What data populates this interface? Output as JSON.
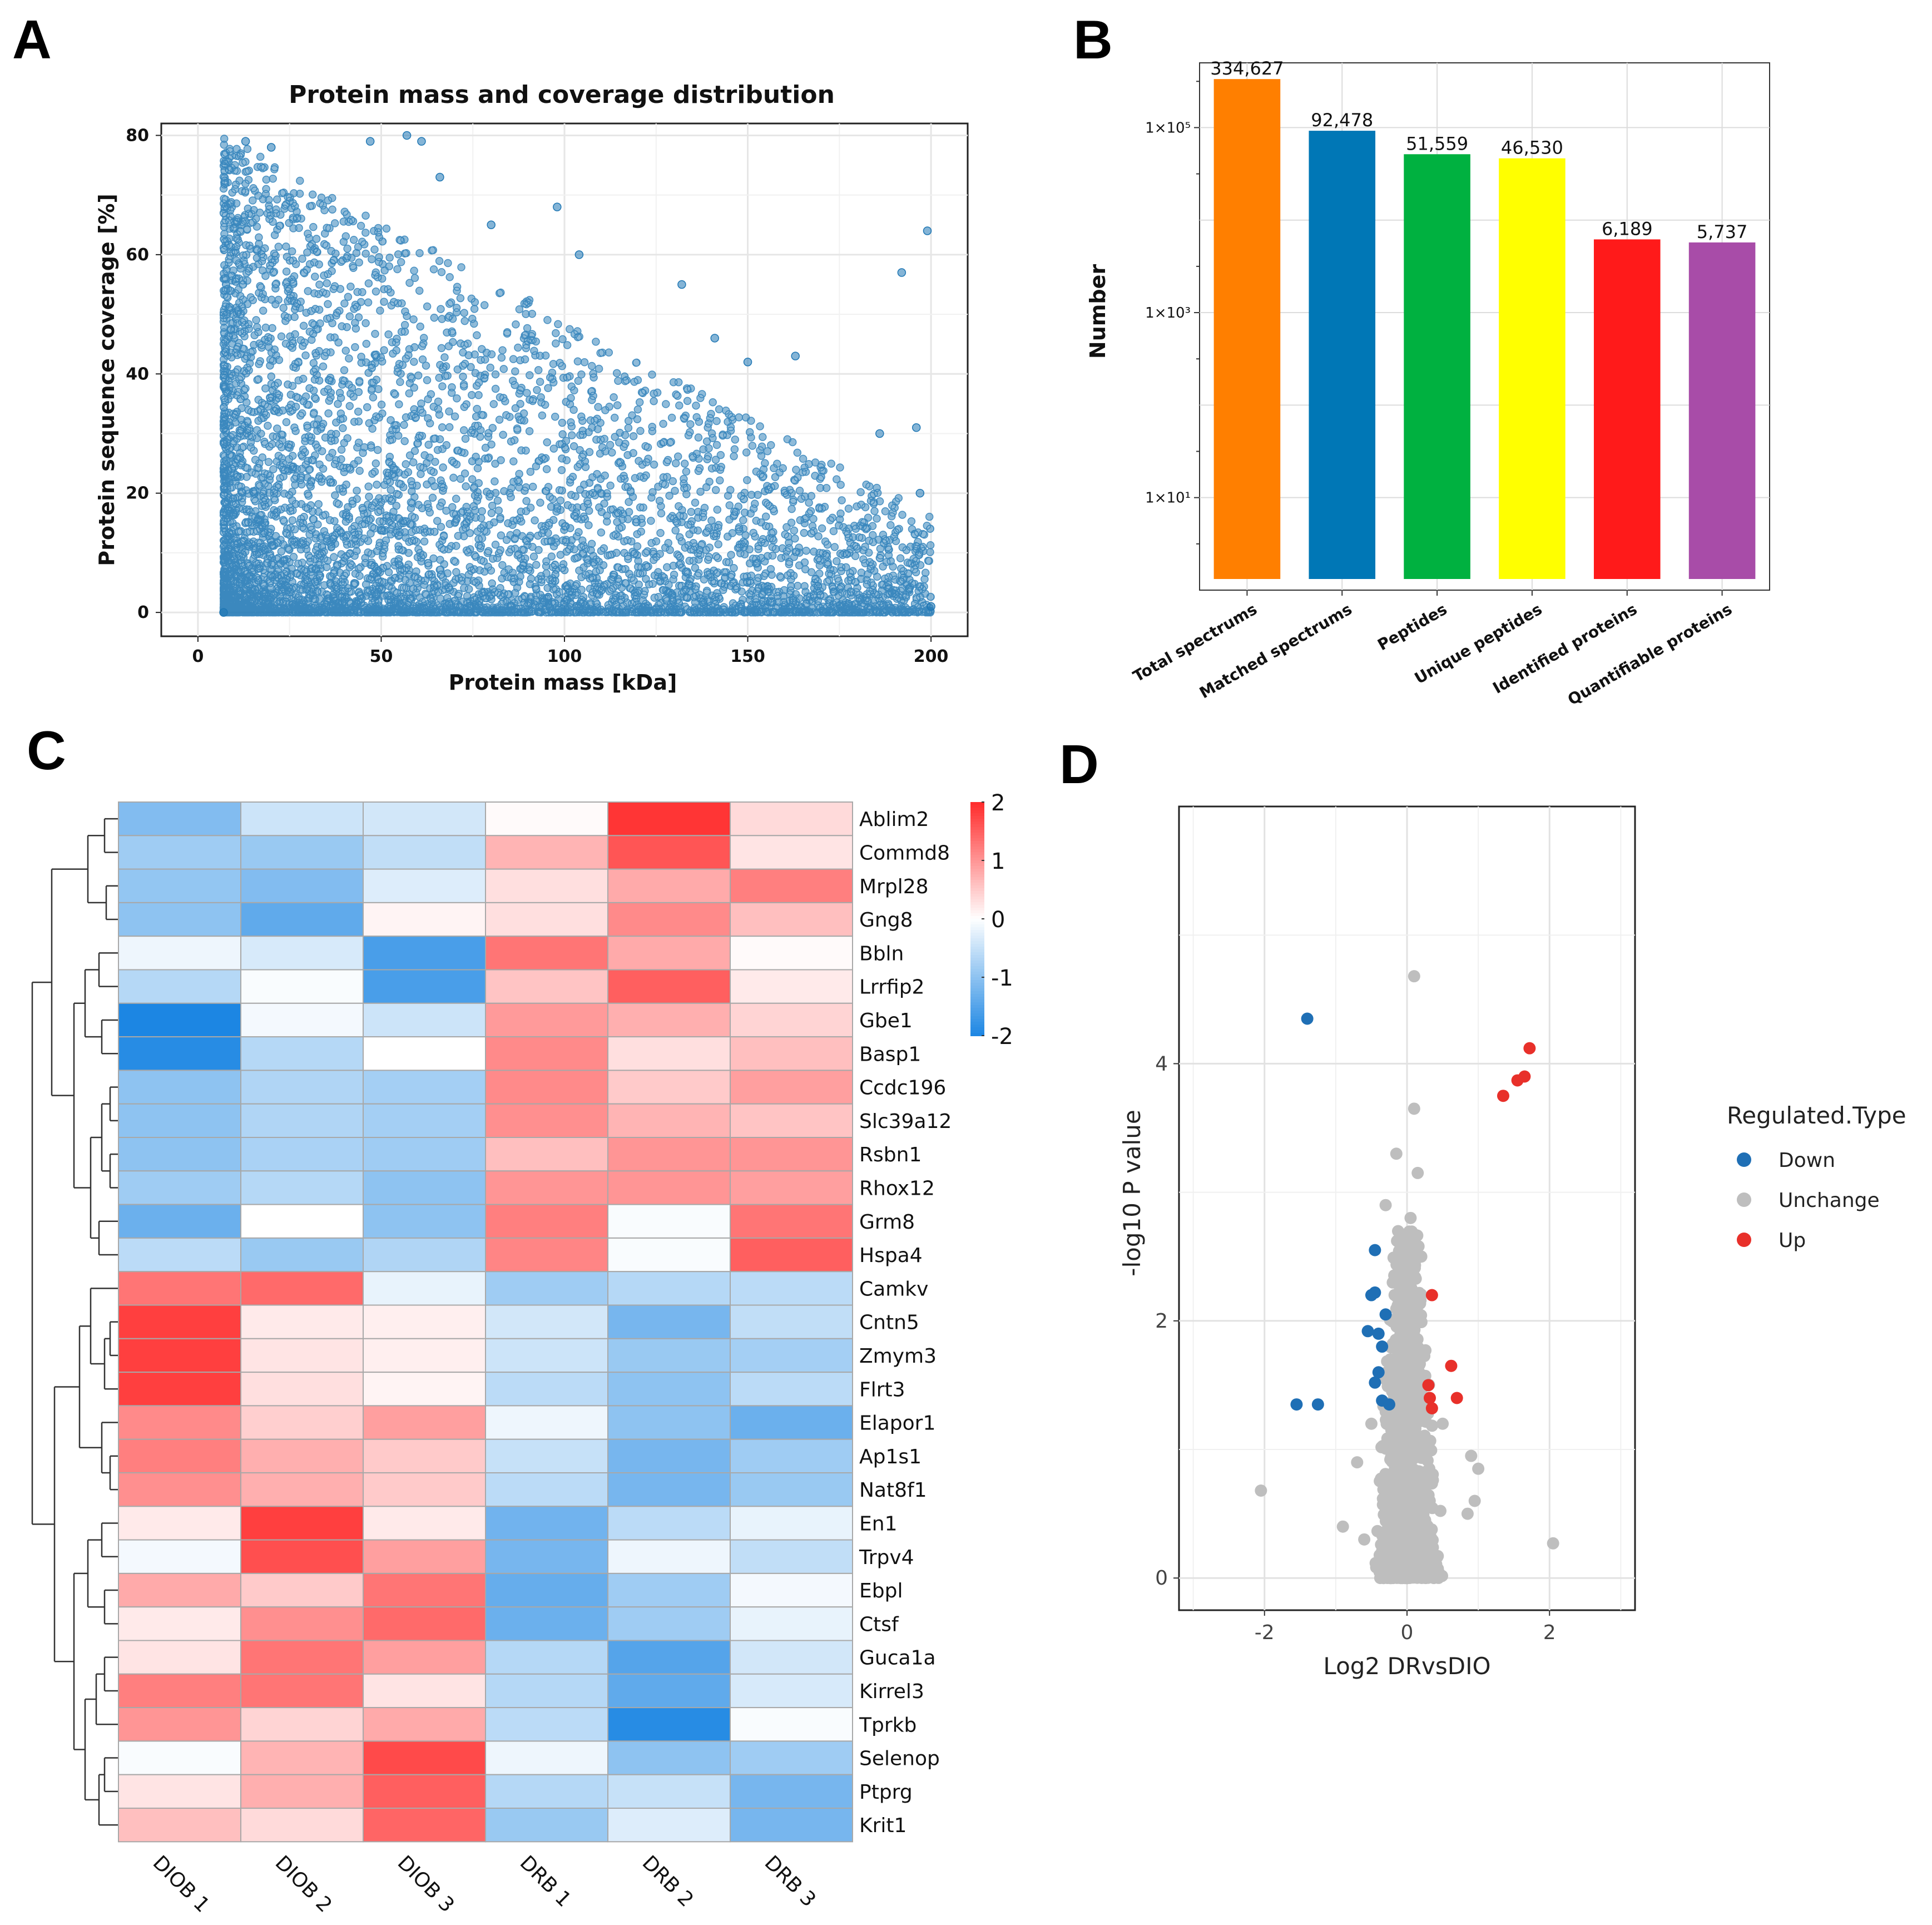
{
  "panels": {
    "a": "A",
    "b": "B",
    "c": "C",
    "d": "D"
  },
  "colors": {
    "scatter_point": "#1f77b4",
    "down": "#1f6fb5",
    "unchange": "#bebebe",
    "up": "#e8302a"
  },
  "chart_data": [
    {
      "type": "scatter",
      "title": "Protein mass and coverage distribution",
      "xlabel": "Protein mass [kDa]",
      "ylabel": "Protein sequence coverage [%]",
      "xlim": [
        -10,
        210
      ],
      "ylim": [
        -4,
        82
      ],
      "xticks": [
        "0",
        "50",
        "100",
        "150",
        "200"
      ],
      "xtick_values": [
        0,
        50,
        100,
        150,
        200
      ],
      "yticks": [
        "0",
        "20",
        "40",
        "60",
        "80"
      ],
      "ytick_values": [
        0,
        20,
        40,
        60,
        80
      ],
      "n_points_approx": 5700,
      "note": "dense cloud concentrated at low mass (10-60 kDa) and low coverage, thinning toward 200 kDa",
      "points_sample": [
        [
          13,
          79
        ],
        [
          20,
          78
        ],
        [
          47,
          79
        ],
        [
          57,
          80
        ],
        [
          61,
          79
        ],
        [
          66,
          73
        ],
        [
          80,
          65
        ],
        [
          98,
          68
        ],
        [
          104,
          60
        ],
        [
          132,
          55
        ],
        [
          141,
          46
        ],
        [
          150,
          42
        ],
        [
          163,
          43
        ],
        [
          186,
          30
        ],
        [
          196,
          31
        ],
        [
          197,
          20
        ],
        [
          199,
          64
        ],
        [
          192,
          57
        ],
        [
          7,
          0
        ],
        [
          200,
          1
        ]
      ]
    },
    {
      "type": "bar",
      "ylabel": "Number",
      "yscale": "log",
      "yticks": [
        "1×10¹",
        "1×10³",
        "1×10⁵"
      ],
      "ytick_values": [
        10,
        1000,
        100000
      ],
      "categories": [
        "Total spectrums",
        "Matched spectrums",
        "Peptides",
        "Unique peptides",
        "Identified proteins",
        "Quantifiable proteins"
      ],
      "values": [
        334627,
        92478,
        51559,
        46530,
        6189,
        5737
      ],
      "labels": [
        "334,627",
        "92,478",
        "51,559",
        "46,530",
        "6,189",
        "5,737"
      ],
      "bar_colors": [
        "#ff7f00",
        "#0077b6",
        "#00b140",
        "#ffff00",
        "#ff1a1a",
        "#a84ca8"
      ]
    },
    {
      "type": "heatmap",
      "columns": [
        "DIOB 1",
        "DIOB 2",
        "DIOB 3",
        "DRB 1",
        "DRB 2",
        "DRB 3"
      ],
      "rows": [
        "Ablim2",
        "Commd8",
        "Mrpl28",
        "Gng8",
        "Bbln",
        "Lrrfip2",
        "Gbe1",
        "Basp1",
        "Ccdc196",
        "Slc39a12",
        "Rsbn1",
        "Rhox12",
        "Grm8",
        "Hspa4",
        "Camkv",
        "Cntn5",
        "Zmym3",
        "Flrt3",
        "Elapor1",
        "Ap1s1",
        "Nat8f1",
        "En1",
        "Trpv4",
        "Ebpl",
        "Ctsf",
        "Guca1a",
        "Kirrel3",
        "Tprkb",
        "Selenop",
        "Ptprg",
        "Krit1"
      ],
      "values": [
        [
          -1.1,
          -0.45,
          -0.4,
          0.05,
          1.9,
          0.35
        ],
        [
          -0.85,
          -0.9,
          -0.55,
          0.7,
          1.6,
          0.25
        ],
        [
          -0.95,
          -1.1,
          -0.3,
          0.3,
          0.8,
          1.2
        ],
        [
          -1.0,
          -1.4,
          0.1,
          0.3,
          1.1,
          0.6
        ],
        [
          -0.15,
          -0.35,
          -1.6,
          1.3,
          0.8,
          0.05
        ],
        [
          -0.65,
          -0.05,
          -1.6,
          0.55,
          1.5,
          0.2
        ],
        [
          -2.0,
          -0.1,
          -0.45,
          0.95,
          0.75,
          0.4
        ],
        [
          -1.9,
          -0.65,
          0.0,
          1.1,
          0.3,
          0.6
        ],
        [
          -1.0,
          -0.7,
          -0.8,
          1.1,
          0.5,
          0.9
        ],
        [
          -1.0,
          -0.7,
          -0.8,
          1.05,
          0.7,
          0.55
        ],
        [
          -1.0,
          -0.75,
          -0.85,
          0.6,
          1.0,
          1.0
        ],
        [
          -0.85,
          -0.65,
          -1.0,
          1.0,
          1.0,
          0.9
        ],
        [
          -1.3,
          0.0,
          -1.0,
          1.2,
          -0.05,
          1.3
        ],
        [
          -0.6,
          -0.9,
          -0.7,
          1.15,
          -0.05,
          1.5
        ],
        [
          1.3,
          1.4,
          -0.2,
          -0.85,
          -0.65,
          -0.6
        ],
        [
          1.8,
          0.2,
          0.15,
          -0.4,
          -1.2,
          -0.55
        ],
        [
          1.8,
          0.25,
          0.15,
          -0.45,
          -0.9,
          -0.8
        ],
        [
          1.8,
          0.3,
          0.1,
          -0.6,
          -1.0,
          -0.6
        ],
        [
          1.1,
          0.45,
          0.9,
          -0.15,
          -1.0,
          -1.3
        ],
        [
          1.2,
          0.75,
          0.5,
          -0.5,
          -1.2,
          -0.85
        ],
        [
          1.05,
          0.75,
          0.5,
          -0.6,
          -1.2,
          -0.9
        ],
        [
          0.2,
          1.8,
          0.2,
          -1.25,
          -0.6,
          -0.2
        ],
        [
          -0.1,
          1.65,
          0.9,
          -1.2,
          -0.15,
          -0.55
        ],
        [
          0.8,
          0.5,
          1.3,
          -1.35,
          -0.85,
          -0.1
        ],
        [
          0.2,
          1.05,
          1.4,
          -1.3,
          -0.85,
          -0.2
        ],
        [
          0.25,
          1.3,
          0.9,
          -0.65,
          -1.5,
          -0.4
        ],
        [
          1.2,
          1.3,
          0.25,
          -0.65,
          -1.4,
          -0.35
        ],
        [
          1.0,
          0.4,
          0.8,
          -0.6,
          -1.9,
          -0.05
        ],
        [
          -0.05,
          0.7,
          1.7,
          -0.15,
          -1.0,
          -0.85
        ],
        [
          0.25,
          0.75,
          1.5,
          -0.65,
          -0.5,
          -1.2
        ],
        [
          0.6,
          0.35,
          1.45,
          -0.9,
          -0.3,
          -1.2
        ]
      ],
      "colorbar": {
        "min": -2,
        "max": 2,
        "ticks": [
          "2",
          "1",
          "0",
          "-1",
          "-2"
        ],
        "tick_values": [
          2,
          1,
          0,
          -1,
          -2
        ],
        "low_color": "#1c86e3",
        "mid_color": "#ffffff",
        "high_color": "#ff2a2a"
      },
      "row_clusters": 2
    },
    {
      "type": "scatter",
      "subtype": "volcano",
      "xlabel": "Log2 DRvsDIO",
      "ylabel": "-log10 P value",
      "xlim": [
        -3.2,
        3.2
      ],
      "ylim": [
        -0.25,
        6.0
      ],
      "xticks": [
        "-2",
        "0",
        "2"
      ],
      "xtick_values": [
        -2,
        0,
        2
      ],
      "yticks": [
        "0",
        "2",
        "4"
      ],
      "ytick_values": [
        0,
        2,
        4
      ],
      "legend": {
        "title": "Regulated.Type",
        "entries": [
          "Down",
          "Unchange",
          "Up"
        ],
        "position": "right"
      },
      "series": [
        {
          "name": "Down",
          "points": [
            [
              -1.4,
              4.35
            ],
            [
              -1.55,
              1.35
            ],
            [
              -1.25,
              1.35
            ],
            [
              -0.45,
              2.55
            ],
            [
              -0.5,
              2.2
            ],
            [
              -0.45,
              2.22
            ],
            [
              -0.3,
              2.05
            ],
            [
              -0.55,
              1.92
            ],
            [
              -0.4,
              1.9
            ],
            [
              -0.35,
              1.8
            ],
            [
              -0.4,
              1.6
            ],
            [
              -0.45,
              1.52
            ],
            [
              -0.35,
              1.38
            ],
            [
              -0.25,
              1.35
            ]
          ]
        },
        {
          "name": "Up",
          "points": [
            [
              1.72,
              4.12
            ],
            [
              1.65,
              3.9
            ],
            [
              1.55,
              3.87
            ],
            [
              1.35,
              3.75
            ],
            [
              0.35,
              2.2
            ],
            [
              0.62,
              1.65
            ],
            [
              0.7,
              1.4
            ],
            [
              0.3,
              1.5
            ],
            [
              0.32,
              1.4
            ],
            [
              0.35,
              1.32
            ]
          ]
        },
        {
          "name": "Unchange",
          "points": [
            [
              0.1,
              4.68
            ],
            [
              0.1,
              3.65
            ],
            [
              0.15,
              3.15
            ],
            [
              -0.15,
              3.3
            ],
            [
              -0.3,
              2.9
            ],
            [
              0.05,
              2.8
            ],
            [
              0.2,
              2.5
            ],
            [
              -0.1,
              2.6
            ],
            [
              -2.05,
              0.68
            ],
            [
              2.05,
              0.27
            ],
            [
              -0.9,
              0.4
            ],
            [
              0.9,
              0.95
            ],
            [
              1.0,
              0.85
            ],
            [
              0.95,
              0.6
            ],
            [
              0.85,
              0.5
            ],
            [
              -0.7,
              0.9
            ],
            [
              -0.6,
              0.3
            ],
            [
              0.5,
              1.2
            ],
            [
              -0.5,
              1.2
            ],
            [
              0.0,
              0.0
            ]
          ]
        }
      ]
    }
  ]
}
